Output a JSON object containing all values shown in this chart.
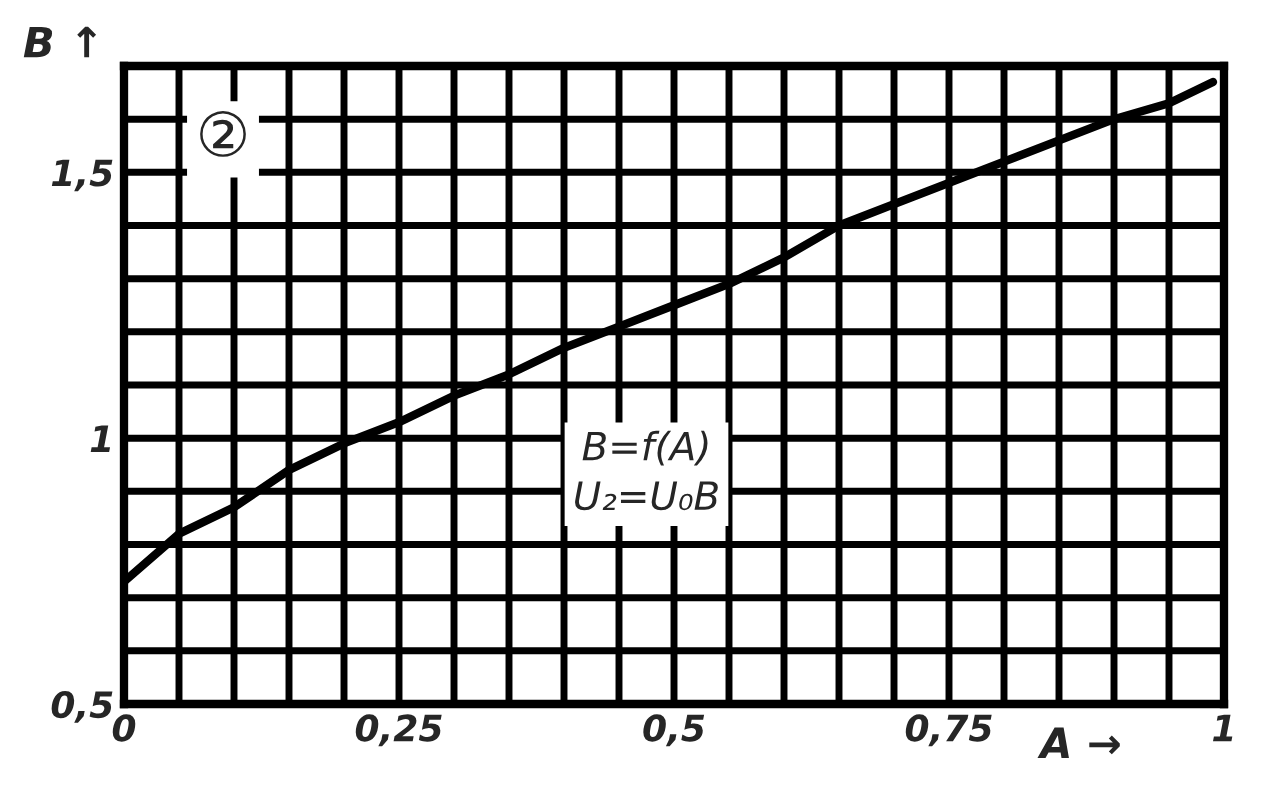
{
  "chart_data": {
    "type": "line",
    "xlabel": "A →",
    "ylabel": "B ↑",
    "annotations": [
      "②",
      "B=f(A)\nU₂=U₀B"
    ],
    "x": [
      0,
      0.05,
      0.1,
      0.15,
      0.2,
      0.25,
      0.3,
      0.35,
      0.4,
      0.45,
      0.5,
      0.55,
      0.6,
      0.65,
      0.7,
      0.75,
      0.8,
      0.85,
      0.9,
      0.95,
      0.99
    ],
    "series": [
      {
        "color": "#000000",
        "values": [
          0.73,
          0.82,
          0.87,
          0.94,
          0.99,
          1.03,
          1.08,
          1.12,
          1.17,
          1.21,
          1.25,
          1.29,
          1.34,
          1.4,
          1.44,
          1.48,
          1.52,
          1.56,
          1.6,
          1.63,
          1.67
        ]
      }
    ],
    "xlim": [
      0,
      1
    ],
    "ylim": [
      0.5,
      1.7
    ],
    "xticks": [
      {
        "value": 0,
        "label": "0"
      },
      {
        "value": 0.05,
        "label": null
      },
      {
        "value": 0.1,
        "label": null
      },
      {
        "value": 0.15,
        "label": null
      },
      {
        "value": 0.2,
        "label": null
      },
      {
        "value": 0.25,
        "label": "0,25"
      },
      {
        "value": 0.3,
        "label": null
      },
      {
        "value": 0.35,
        "label": null
      },
      {
        "value": 0.4,
        "label": null
      },
      {
        "value": 0.45,
        "label": null
      },
      {
        "value": 0.5,
        "label": "0,5"
      },
      {
        "value": 0.55,
        "label": null
      },
      {
        "value": 0.6,
        "label": null
      },
      {
        "value": 0.65,
        "label": null
      },
      {
        "value": 0.7,
        "label": null
      },
      {
        "value": 0.75,
        "label": "0,75"
      },
      {
        "value": 0.8,
        "label": null
      },
      {
        "value": 0.85,
        "label": null
      },
      {
        "value": 0.9,
        "label": null
      },
      {
        "value": 0.95,
        "label": null
      },
      {
        "value": 1,
        "label": "1"
      }
    ],
    "yticks": [
      {
        "value": 0.5,
        "label": "0,5"
      },
      {
        "value": 0.6,
        "label": null
      },
      {
        "value": 0.7,
        "label": null
      },
      {
        "value": 0.8,
        "label": null
      },
      {
        "value": 0.9,
        "label": null
      },
      {
        "value": 1,
        "label": "1"
      },
      {
        "value": 1.1,
        "label": null
      },
      {
        "value": 1.2,
        "label": null
      },
      {
        "value": 1.3,
        "label": null
      },
      {
        "value": 1.4,
        "label": null
      },
      {
        "value": 1.5,
        "label": "1,5"
      },
      {
        "value": 1.6,
        "label": null
      },
      {
        "value": 1.7,
        "label": null
      }
    ],
    "grid": true,
    "legend": false,
    "marker": "none",
    "line_style": "solid"
  }
}
